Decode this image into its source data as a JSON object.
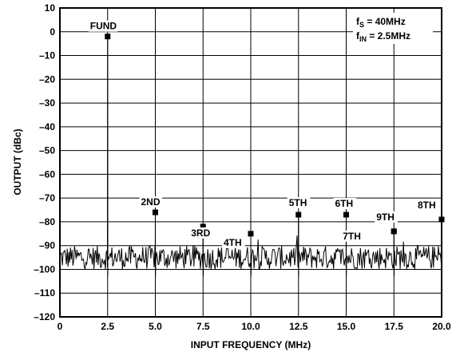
{
  "chart_data": {
    "type": "line",
    "title": "",
    "xlabel": "INPUT FREQUENCY (MHz)",
    "ylabel": "OUTPUT (dBc)",
    "xlim": [
      0,
      20
    ],
    "ylim": [
      -120,
      10
    ],
    "x_ticks": [
      "0",
      "2.5",
      "5.0",
      "7.5",
      "10.0",
      "12.5",
      "15.0",
      "17.5",
      "20.0"
    ],
    "y_ticks": [
      "10",
      "0",
      "–10",
      "–20",
      "–30",
      "–40",
      "–50",
      "–60",
      "–70",
      "–80",
      "–90",
      "–100",
      "–110",
      "–120"
    ],
    "grid": true,
    "conditions": {
      "fs_prefix": "f",
      "fs_sub": "S",
      "fs_value": " = 40MHz",
      "fin_prefix": "f",
      "fin_sub": "IN",
      "fin_value": " = 2.5MHz"
    },
    "noise_floor": {
      "mean": -95,
      "min": -100,
      "max": -90
    },
    "harmonics": [
      {
        "label": "FUND",
        "x": 2.5,
        "y": -2
      },
      {
        "label": "2ND",
        "x": 5.0,
        "y": -76
      },
      {
        "label": "3RD",
        "x": 7.5,
        "y": -82
      },
      {
        "label": "4TH",
        "x": 10.0,
        "y": -85
      },
      {
        "label": "5TH",
        "x": 12.5,
        "y": -77
      },
      {
        "label": "6TH",
        "x": 15.0,
        "y": -77
      },
      {
        "label": "7TH",
        "x": 17.5,
        "y": -84
      },
      {
        "label": "8TH",
        "x": 20.0,
        "y": -79
      },
      {
        "label": "9TH",
        "x": 17.5,
        "y": -84
      }
    ]
  }
}
